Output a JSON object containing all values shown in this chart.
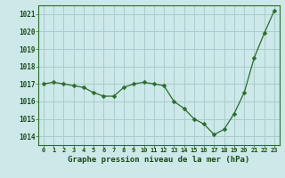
{
  "x": [
    0,
    1,
    2,
    3,
    4,
    5,
    6,
    7,
    8,
    9,
    10,
    11,
    12,
    13,
    14,
    15,
    16,
    17,
    18,
    19,
    20,
    21,
    22,
    23
  ],
  "y": [
    1017.0,
    1017.1,
    1017.0,
    1016.9,
    1016.8,
    1016.5,
    1016.3,
    1016.3,
    1016.8,
    1017.0,
    1017.1,
    1017.0,
    1016.9,
    1016.0,
    1015.6,
    1015.0,
    1014.7,
    1014.1,
    1014.4,
    1015.3,
    1016.5,
    1018.5,
    1019.9,
    1021.2
  ],
  "line_color": "#2d6a2d",
  "marker": "D",
  "marker_size": 2.5,
  "background_color": "#cce8e8",
  "grid_color": "#aacccc",
  "tick_color": "#1a4a1a",
  "ylim": [
    1013.5,
    1021.5
  ],
  "yticks": [
    1014,
    1015,
    1016,
    1017,
    1018,
    1019,
    1020,
    1021
  ],
  "xlim": [
    -0.5,
    23.5
  ],
  "xticks": [
    0,
    1,
    2,
    3,
    4,
    5,
    6,
    7,
    8,
    9,
    10,
    11,
    12,
    13,
    14,
    15,
    16,
    17,
    18,
    19,
    20,
    21,
    22,
    23
  ],
  "spine_color": "#2d6a2d",
  "xlabel": "Graphe pression niveau de la mer (hPa)",
  "xlabel_fg": "#1a4a1a",
  "xlabel_bg": "#cce8e8"
}
